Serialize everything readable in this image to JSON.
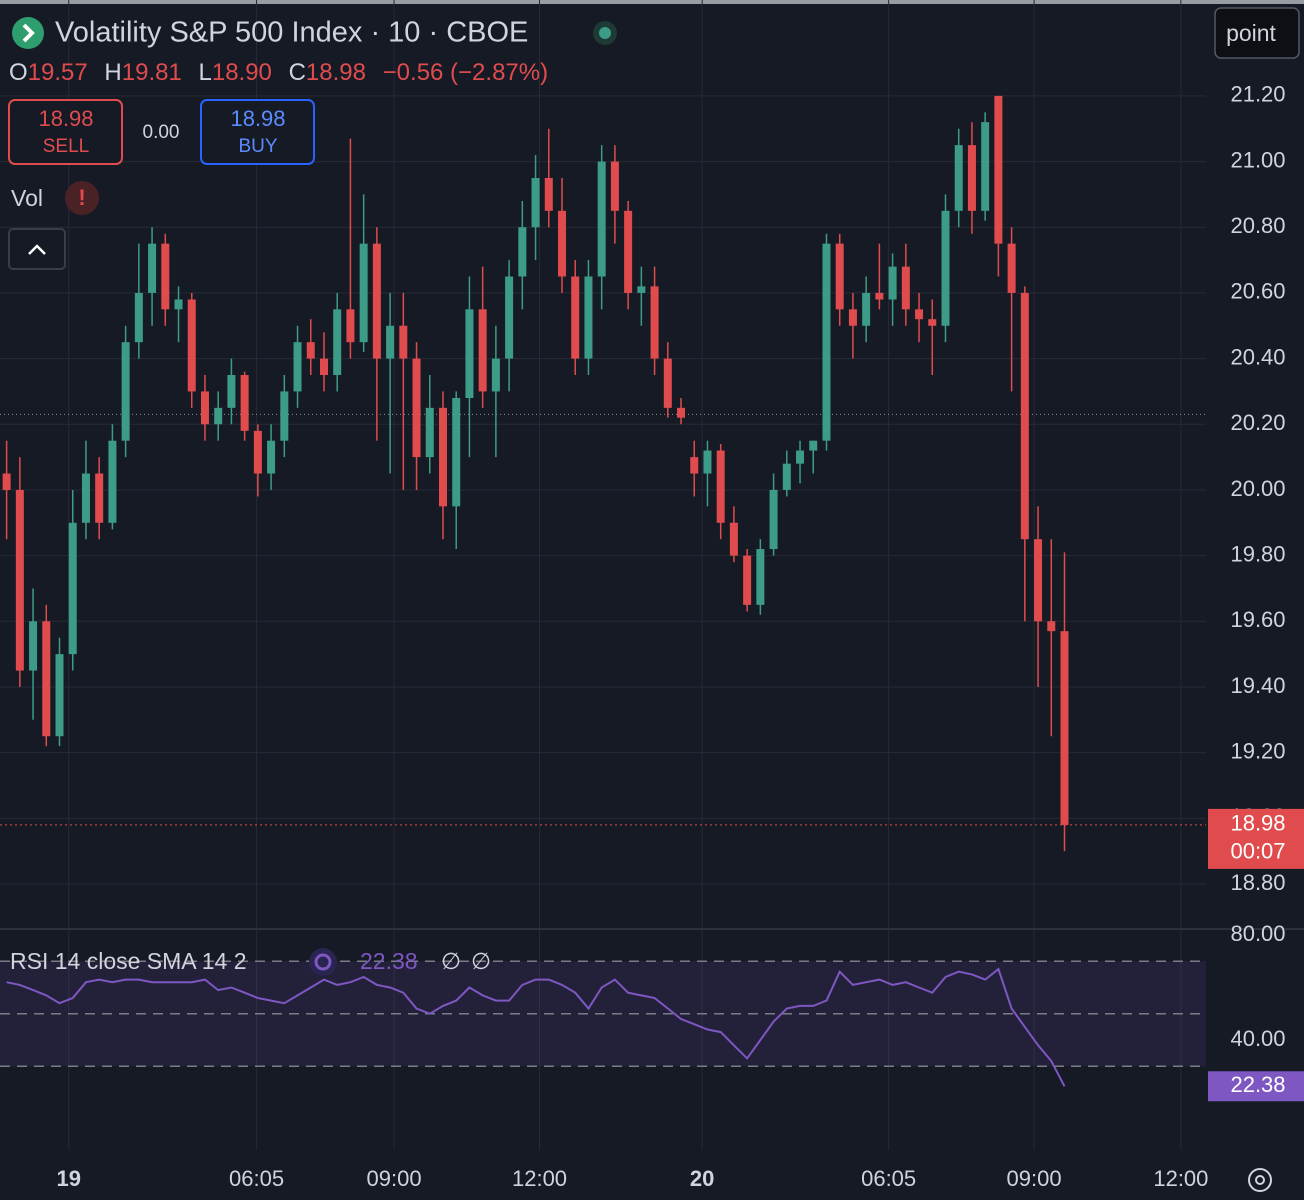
{
  "header": {
    "title": "Volatility S&P 500 Index · 10 · CBOE",
    "ohlc_legend": [
      {
        "key": "O",
        "value": "19.57"
      },
      {
        "key": "H",
        "value": "19.81"
      },
      {
        "key": "L",
        "value": "18.90"
      },
      {
        "key": "C",
        "value": "18.98"
      }
    ],
    "change": "−0.56 (−2.87%)",
    "sell": {
      "price": "18.98",
      "label": "SELL"
    },
    "spread": "0.00",
    "buy": {
      "price": "18.98",
      "label": "BUY"
    },
    "volume_label": "Vol",
    "warning": "!",
    "mode_button": "point"
  },
  "chart_data": {
    "type": "candlestick",
    "up_color": "#3d9c87",
    "down_color": "#e04c4e",
    "grid": true,
    "ylim": [
      18.666,
      21.492
    ],
    "yticks": [
      {
        "value": 18.8,
        "label": "18.80"
      },
      {
        "value": 19.0,
        "label": "19.00"
      },
      {
        "value": 19.2,
        "label": "19.20"
      },
      {
        "value": 19.4,
        "label": "19.40"
      },
      {
        "value": 19.6,
        "label": "19.60"
      },
      {
        "value": 19.8,
        "label": "19.80"
      },
      {
        "value": 20.0,
        "label": "20.00"
      },
      {
        "value": 20.2,
        "label": "20.20"
      },
      {
        "value": 20.4,
        "label": "20.40"
      },
      {
        "value": 20.6,
        "label": "20.60"
      },
      {
        "value": 20.8,
        "label": "20.80"
      },
      {
        "value": 21.0,
        "label": "21.00"
      },
      {
        "value": 21.2,
        "label": "21.20"
      }
    ],
    "xlim": [
      -0.5,
      90.7
    ],
    "xticks": [
      {
        "value": 4.7,
        "label": "19"
      },
      {
        "value": 18.9,
        "label": "06:05"
      },
      {
        "value": 29.3,
        "label": "09:00"
      },
      {
        "value": 40.3,
        "label": "12:00"
      },
      {
        "value": 52.6,
        "label": "20"
      },
      {
        "value": 66.7,
        "label": "06:05"
      },
      {
        "value": 77.7,
        "label": "09:00"
      },
      {
        "value": 88.8,
        "label": "12:00"
      }
    ],
    "countdown": "00:07",
    "reference_line": 20.23,
    "ohlc": [
      [
        20.05,
        20.15,
        19.85,
        20.0
      ],
      [
        20.0,
        20.1,
        19.4,
        19.45
      ],
      [
        19.45,
        19.7,
        19.3,
        19.6
      ],
      [
        19.6,
        19.65,
        19.22,
        19.25
      ],
      [
        19.25,
        19.55,
        19.22,
        19.5
      ],
      [
        19.5,
        20.0,
        19.45,
        19.9
      ],
      [
        19.9,
        20.15,
        19.85,
        20.05
      ],
      [
        20.05,
        20.1,
        19.85,
        19.9
      ],
      [
        19.9,
        20.2,
        19.88,
        20.15
      ],
      [
        20.15,
        20.5,
        20.1,
        20.45
      ],
      [
        20.45,
        20.75,
        20.4,
        20.6
      ],
      [
        20.6,
        20.8,
        20.5,
        20.75
      ],
      [
        20.75,
        20.78,
        20.5,
        20.55
      ],
      [
        20.55,
        20.62,
        20.45,
        20.58
      ],
      [
        20.58,
        20.6,
        20.25,
        20.3
      ],
      [
        20.3,
        20.35,
        20.15,
        20.2
      ],
      [
        20.2,
        20.3,
        20.15,
        20.25
      ],
      [
        20.25,
        20.4,
        20.2,
        20.35
      ],
      [
        20.35,
        20.36,
        20.15,
        20.18
      ],
      [
        20.18,
        20.2,
        19.98,
        20.05
      ],
      [
        20.05,
        20.2,
        20.0,
        20.15
      ],
      [
        20.15,
        20.35,
        20.1,
        20.3
      ],
      [
        20.3,
        20.5,
        20.25,
        20.45
      ],
      [
        20.45,
        20.52,
        20.35,
        20.4
      ],
      [
        20.4,
        20.48,
        20.3,
        20.35
      ],
      [
        20.35,
        20.6,
        20.3,
        20.55
      ],
      [
        20.55,
        21.07,
        20.4,
        20.45
      ],
      [
        20.45,
        20.9,
        20.42,
        20.75
      ],
      [
        20.75,
        20.8,
        20.15,
        20.4
      ],
      [
        20.4,
        20.6,
        20.05,
        20.5
      ],
      [
        20.5,
        20.6,
        20.0,
        20.4
      ],
      [
        20.4,
        20.45,
        20.0,
        20.1
      ],
      [
        20.1,
        20.35,
        20.05,
        20.25
      ],
      [
        20.25,
        20.3,
        19.85,
        19.95
      ],
      [
        19.95,
        20.3,
        19.82,
        20.28
      ],
      [
        20.28,
        20.65,
        20.1,
        20.55
      ],
      [
        20.55,
        20.68,
        20.25,
        20.3
      ],
      [
        20.3,
        20.5,
        20.1,
        20.4
      ],
      [
        20.4,
        20.7,
        20.3,
        20.65
      ],
      [
        20.65,
        20.88,
        20.55,
        20.8
      ],
      [
        20.8,
        21.02,
        20.7,
        20.95
      ],
      [
        20.95,
        21.1,
        20.8,
        20.85
      ],
      [
        20.85,
        20.95,
        20.6,
        20.65
      ],
      [
        20.65,
        20.7,
        20.35,
        20.4
      ],
      [
        20.4,
        20.7,
        20.35,
        20.65
      ],
      [
        20.65,
        21.05,
        20.55,
        21.0
      ],
      [
        21.0,
        21.05,
        20.75,
        20.85
      ],
      [
        20.85,
        20.88,
        20.55,
        20.6
      ],
      [
        20.6,
        20.68,
        20.5,
        20.62
      ],
      [
        20.62,
        20.68,
        20.35,
        20.4
      ],
      [
        20.4,
        20.45,
        20.22,
        20.25
      ],
      [
        20.25,
        20.28,
        20.2,
        20.22
      ],
      [
        20.1,
        20.15,
        19.98,
        20.05
      ],
      [
        20.05,
        20.15,
        19.95,
        20.12
      ],
      [
        20.12,
        20.14,
        19.85,
        19.9
      ],
      [
        19.9,
        19.95,
        19.78,
        19.8
      ],
      [
        19.8,
        19.82,
        19.63,
        19.65
      ],
      [
        19.65,
        19.85,
        19.62,
        19.82
      ],
      [
        19.82,
        20.05,
        19.8,
        20.0
      ],
      [
        20.0,
        20.12,
        19.98,
        20.08
      ],
      [
        20.08,
        20.15,
        20.02,
        20.12
      ],
      [
        20.12,
        20.15,
        20.05,
        20.15
      ],
      [
        20.15,
        20.78,
        20.12,
        20.75
      ],
      [
        20.75,
        20.78,
        20.5,
        20.55
      ],
      [
        20.55,
        20.6,
        20.4,
        20.5
      ],
      [
        20.5,
        20.65,
        20.45,
        20.6
      ],
      [
        20.6,
        20.75,
        20.55,
        20.58
      ],
      [
        20.58,
        20.72,
        20.5,
        20.68
      ],
      [
        20.68,
        20.75,
        20.5,
        20.55
      ],
      [
        20.55,
        20.6,
        20.45,
        20.52
      ],
      [
        20.52,
        20.58,
        20.35,
        20.5
      ],
      [
        20.5,
        20.9,
        20.45,
        20.85
      ],
      [
        20.85,
        21.1,
        20.8,
        21.05
      ],
      [
        21.05,
        21.12,
        20.78,
        20.85
      ],
      [
        20.85,
        21.15,
        20.82,
        21.12
      ],
      [
        21.2,
        21.2,
        20.65,
        20.75
      ],
      [
        20.75,
        20.8,
        20.3,
        20.6
      ],
      [
        20.6,
        20.62,
        19.6,
        19.85
      ],
      [
        19.85,
        19.95,
        19.4,
        19.6
      ],
      [
        19.6,
        19.85,
        19.25,
        19.57
      ],
      [
        19.57,
        19.81,
        18.9,
        18.98
      ]
    ]
  },
  "rsi": {
    "type": "line",
    "legend": "RSI 14 close SMA 14 2",
    "null_symbols": [
      "∅",
      "∅"
    ],
    "color": "#7e57c2",
    "ylim": [
      -1.9,
      81.9
    ],
    "yticks": [
      {
        "value": 80,
        "label": "80.00"
      },
      {
        "value": 40,
        "label": "40.00"
      }
    ],
    "bands": [
      70,
      50,
      30
    ],
    "values": [
      62,
      61,
      59,
      57,
      54,
      56,
      62,
      63,
      62,
      63,
      63,
      62,
      62,
      62,
      62,
      63,
      59,
      60,
      58,
      56,
      55,
      54,
      57,
      60,
      63,
      61,
      62,
      64,
      61,
      60,
      58,
      52,
      50,
      53,
      55,
      60,
      57,
      55,
      55,
      61,
      63,
      63,
      61,
      58,
      52,
      60,
      63,
      58,
      57,
      56,
      52,
      48,
      46,
      44,
      43,
      38,
      33,
      40,
      47,
      52,
      53,
      53,
      55,
      66,
      61,
      62,
      63,
      61,
      62,
      60,
      58,
      64,
      66,
      65,
      63,
      67,
      52,
      45,
      38,
      32,
      22.38
    ]
  }
}
